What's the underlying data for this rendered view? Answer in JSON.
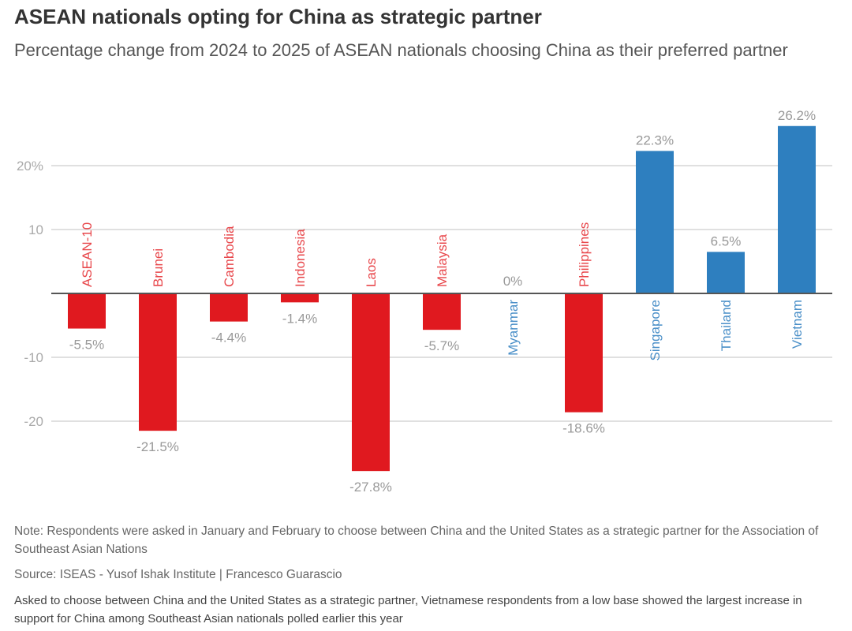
{
  "title": "ASEAN nationals opting for China as strategic partner",
  "subtitle": "Percentage change from 2024 to 2025 of ASEAN nationals choosing China as their preferred partner",
  "note": "Note: Respondents were asked in January and February to choose between China and the United States as a strategic partner for the Association of Southeast Asian Nations",
  "source": "Source: ISEAS - Yusof Ishak Institute | Francesco Guarascio",
  "caption": "Asked to choose between China and the United States as a strategic partner, Vietnamese respondents from a low base showed the largest increase in support for China among Southeast Asian nationals polled earlier this year",
  "chart_data": {
    "type": "bar",
    "categories": [
      "ASEAN-10",
      "Brunei",
      "Cambodia",
      "Indonesia",
      "Laos",
      "Malaysia",
      "Myanmar",
      "Philippines",
      "Singapore",
      "Thailand",
      "Vietnam"
    ],
    "values": [
      -5.5,
      -21.5,
      -4.4,
      -1.4,
      -27.8,
      -5.7,
      0,
      -18.6,
      22.3,
      6.5,
      26.2
    ],
    "data_labels": [
      "-5.5%",
      "-21.5%",
      "-4.4%",
      "-1.4%",
      "-27.8%",
      "-5.7%",
      "0%",
      "-18.6%",
      "22.3%",
      "6.5%",
      "26.2%"
    ],
    "yticks": [
      20,
      10,
      -10,
      -20
    ],
    "ytick_labels": [
      "20%",
      "10",
      "-10",
      "-20"
    ],
    "ylim": [
      -30,
      30
    ],
    "grid": true,
    "colors": {
      "negative": "#e0191f",
      "positive": "#2e7fbf",
      "negative_label": "#e8474b",
      "positive_label": "#4a8fc8"
    }
  }
}
